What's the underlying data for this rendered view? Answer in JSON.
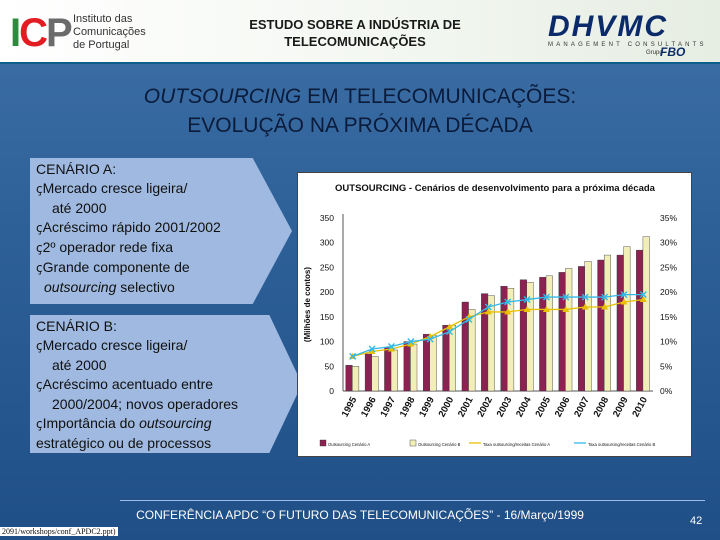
{
  "header": {
    "icp_logo_letters": [
      "I",
      "C",
      "P"
    ],
    "icp_text_lines": [
      "Instituto das",
      "Comunicações",
      "de Portugal"
    ],
    "title_lines": [
      "ESTUDO SOBRE A INDÚSTRIA DE",
      "TELECOMUNICAÇÕES"
    ],
    "dhv_logo": "DHVMC",
    "dhv_sub": "MANAGEMENT CONSULTANTS",
    "dhv_grupo": "Grupo",
    "dhv_fbo": "FBO"
  },
  "slide_title": {
    "line1_italic": "OUTSOURCING",
    "line1_rest": " EM TELECOMUNICAÇÕES:",
    "line2": "EVOLUÇÃO NA PRÓXIMA DÉCADA"
  },
  "bullet_glyph": "ç",
  "scenario_a": {
    "title": "CENÁRIO A:",
    "b1": "Mercado cresce ligeira/",
    "b1_cont": "até 2000",
    "b2": "Acréscimo rápido 2001/2002",
    "b3": "2º operador rede fixa",
    "b4": "Grande componente de",
    "b4_italic": "outsourcing",
    "b4_end": " selectivo"
  },
  "scenario_b": {
    "title": "CENÁRIO B:",
    "b1": "Mercado cresce ligeira/",
    "b1_cont": "até 2000",
    "b2": "Acréscimo acentuado entre",
    "b2_cont": "2000/2004; novos operadores",
    "b3_start": "Importância do ",
    "b3_italic": "outsourcing",
    "b3_cont": "estratégico ou de processos"
  },
  "chart_data": {
    "type": "bar",
    "title": "OUTSOURCING - Cenários de desenvolvimento para a próxima década",
    "ylabel": "(Milhões de contos)",
    "categories": [
      "1995",
      "1996",
      "1997",
      "1998",
      "1999",
      "2000",
      "2001",
      "2002",
      "2003",
      "2004",
      "2005",
      "2006",
      "2007",
      "2008",
      "2009",
      "2010"
    ],
    "ylim": [
      0,
      350
    ],
    "yticks": [
      "0",
      "50",
      "100",
      "150",
      "200",
      "250",
      "300",
      "350"
    ],
    "y2lim": [
      0,
      35
    ],
    "y2ticks": [
      "0%",
      "5%",
      "10%",
      "15%",
      "20%",
      "25%",
      "30%",
      "35%"
    ],
    "series": [
      {
        "name": "Outsourcing Cenário A",
        "color": "#8b2252",
        "kind": "bar",
        "values": [
          52,
          75,
          88,
          100,
          115,
          133,
          180,
          197,
          212,
          225,
          230,
          240,
          252,
          265,
          275,
          285
        ]
      },
      {
        "name": "Outsourcing Cenário B",
        "color": "#f2eeb8",
        "kind": "bar",
        "values": [
          50,
          70,
          83,
          95,
          113,
          133,
          165,
          193,
          208,
          220,
          233,
          248,
          262,
          275,
          292,
          312
        ]
      },
      {
        "name": "Taxa outsourcing/receitas Cenário A",
        "color": "#e8c000",
        "kind": "line",
        "marker": "triangle",
        "values": [
          7,
          8,
          8.5,
          9.5,
          11,
          13,
          15,
          16,
          16,
          16.5,
          16.5,
          16.5,
          17,
          17,
          18,
          18.5
        ]
      },
      {
        "name": "Taxa outsourcing/receitas Cenário B",
        "color": "#33b8e8",
        "kind": "line",
        "marker": "x",
        "values": [
          7,
          8.5,
          9,
          10,
          10.5,
          12,
          14.5,
          17,
          18,
          18.5,
          19,
          19,
          19,
          19,
          19.5,
          19.5
        ]
      }
    ]
  },
  "footer": {
    "text": "CONFERÊNCIA APDC “O FUTURO DAS TELECOMUNICAÇÕES” - 16/Março/1999",
    "page": "42",
    "file_path": "2091/workshops/conf_APDC2.ppt)"
  }
}
